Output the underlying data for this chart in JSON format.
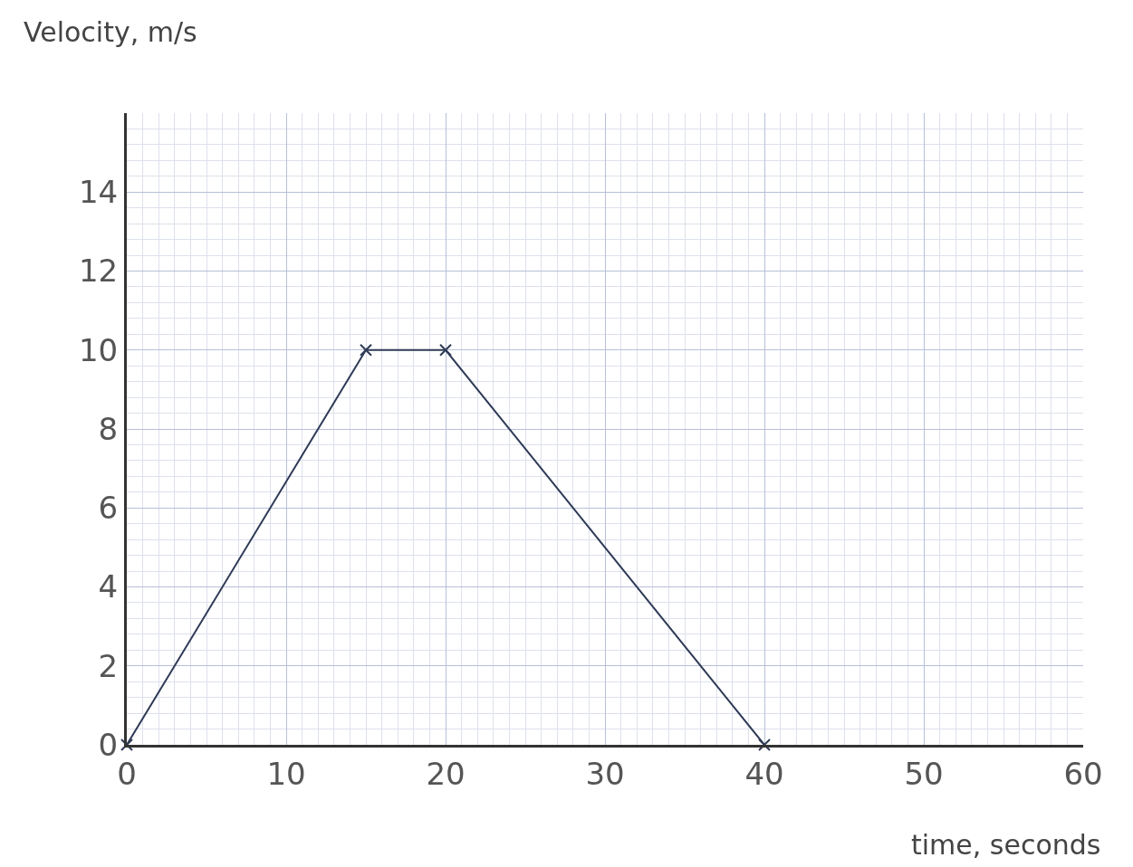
{
  "chart_data": {
    "type": "line",
    "xlabel": "time, seconds",
    "ylabel": "Velocity, m/s",
    "x": [
      0,
      15,
      20,
      40
    ],
    "series": [
      {
        "color": "#2f3b57",
        "values": [
          0,
          10,
          10,
          0
        ]
      }
    ],
    "xlim": [
      0,
      60
    ],
    "ylim": [
      0,
      16
    ],
    "xticks": [
      0,
      10,
      20,
      30,
      40,
      50,
      60
    ],
    "yticks": [
      0,
      2,
      4,
      6,
      8,
      10,
      12,
      14
    ],
    "grid": true,
    "marker": "cross",
    "line_style": "solid"
  }
}
